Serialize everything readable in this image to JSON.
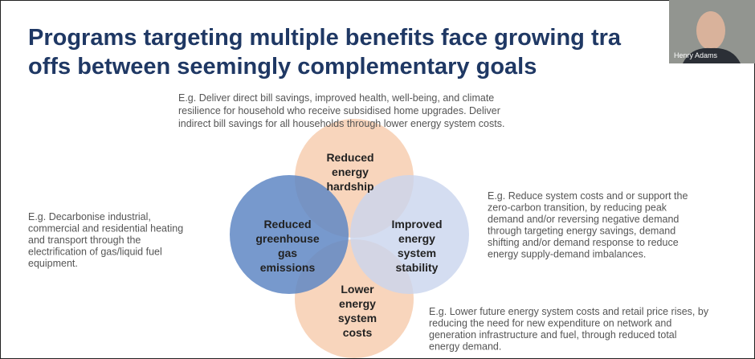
{
  "slide": {
    "title": [
      "Programs targeting multiple benefits face growing tra",
      "offs between seemingly complementary goals"
    ],
    "circles": [
      {
        "label": [
          "Reduced",
          "energy",
          "hardship"
        ]
      },
      {
        "label": [
          "Reduced",
          "greenhouse",
          "gas",
          "emissions"
        ]
      },
      {
        "label": [
          "Improved",
          "energy",
          "system",
          "stability"
        ]
      },
      {
        "label": [
          "Lower",
          "energy",
          "system",
          "costs"
        ]
      }
    ],
    "descriptions": {
      "top": [
        "E.g. Deliver direct bill savings, improved health, well-being, and climate",
        "resilience for household who receive subsidised home upgrades. Deliver",
        "indirect bill savings for all households through lower energy system costs."
      ],
      "left": [
        "E.g. Decarbonise industrial,",
        "commercial and residential heating",
        "and transport through the",
        "electrification of gas/liquid fuel",
        "equipment."
      ],
      "right": [
        "E.g. Reduce system costs and or support the",
        "zero-carbon transition, by reducing peak",
        "demand and/or reversing negative demand",
        "through targeting energy savings, demand",
        "shifting and/or demand response to reduce",
        "energy supply-demand imbalances."
      ],
      "bottom": [
        "E.g. Lower future energy system costs and retail price rises, by",
        "reducing the need for new expenditure on network and",
        "generation infrastructure and fuel, through reduced total",
        "energy demand."
      ]
    }
  },
  "video": {
    "name": "Henry Adams"
  }
}
